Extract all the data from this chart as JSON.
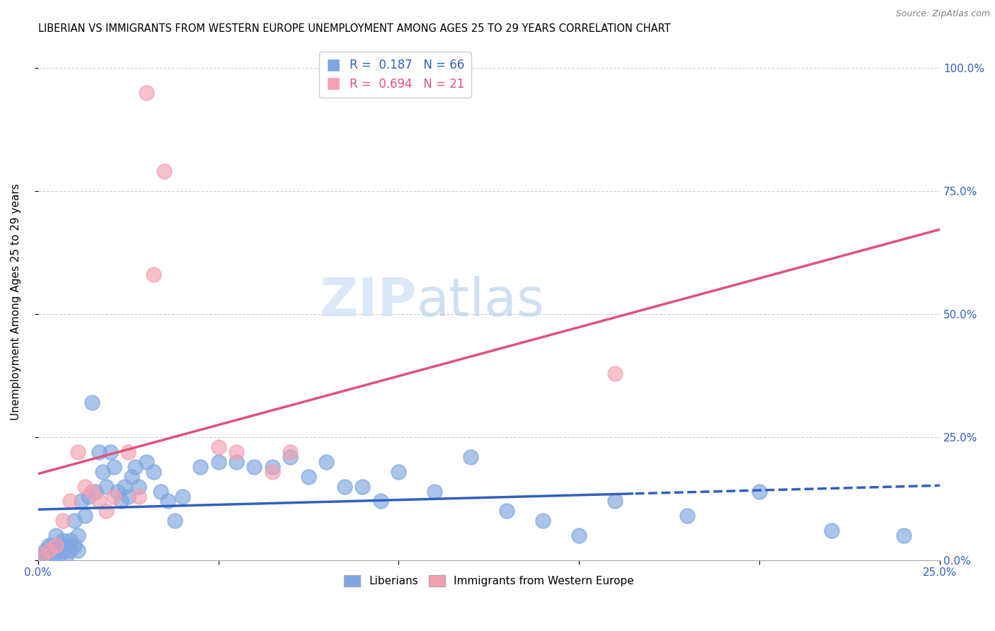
{
  "title": "LIBERIAN VS IMMIGRANTS FROM WESTERN EUROPE UNEMPLOYMENT AMONG AGES 25 TO 29 YEARS CORRELATION CHART",
  "source": "Source: ZipAtlas.com",
  "ylabel": "Unemployment Among Ages 25 to 29 years",
  "xmin": 0.0,
  "xmax": 0.25,
  "ymin": 0.0,
  "ymax": 1.05,
  "legend_label1": "Liberians",
  "legend_label2": "Immigrants from Western Europe",
  "r1": 0.187,
  "n1": 66,
  "r2": 0.694,
  "n2": 21,
  "blue_color": "#7ea6e0",
  "pink_color": "#f4a0b0",
  "blue_line_color": "#3060c0",
  "pink_line_color": "#e05080",
  "watermark_zip": "ZIP",
  "watermark_atlas": "atlas",
  "blue_scatter_x": [
    0.001,
    0.002,
    0.002,
    0.003,
    0.003,
    0.004,
    0.004,
    0.005,
    0.005,
    0.006,
    0.006,
    0.007,
    0.007,
    0.008,
    0.008,
    0.009,
    0.009,
    0.01,
    0.01,
    0.011,
    0.011,
    0.012,
    0.013,
    0.014,
    0.015,
    0.016,
    0.017,
    0.018,
    0.019,
    0.02,
    0.021,
    0.022,
    0.023,
    0.024,
    0.025,
    0.026,
    0.027,
    0.028,
    0.03,
    0.032,
    0.034,
    0.036,
    0.038,
    0.04,
    0.045,
    0.05,
    0.055,
    0.06,
    0.065,
    0.07,
    0.075,
    0.08,
    0.085,
    0.09,
    0.095,
    0.1,
    0.11,
    0.12,
    0.13,
    0.14,
    0.15,
    0.16,
    0.18,
    0.2,
    0.22,
    0.24
  ],
  "blue_scatter_y": [
    0.01,
    0.02,
    0.01,
    0.03,
    0.02,
    0.01,
    0.03,
    0.05,
    0.02,
    0.03,
    0.01,
    0.04,
    0.02,
    0.03,
    0.01,
    0.04,
    0.02,
    0.08,
    0.03,
    0.05,
    0.02,
    0.12,
    0.09,
    0.13,
    0.32,
    0.14,
    0.22,
    0.18,
    0.15,
    0.22,
    0.19,
    0.14,
    0.12,
    0.15,
    0.13,
    0.17,
    0.19,
    0.15,
    0.2,
    0.18,
    0.14,
    0.12,
    0.08,
    0.13,
    0.19,
    0.2,
    0.2,
    0.19,
    0.19,
    0.21,
    0.17,
    0.2,
    0.15,
    0.15,
    0.12,
    0.18,
    0.14,
    0.21,
    0.1,
    0.08,
    0.05,
    0.12,
    0.09,
    0.14,
    0.06,
    0.05
  ],
  "pink_scatter_x": [
    0.001,
    0.003,
    0.005,
    0.007,
    0.009,
    0.011,
    0.013,
    0.015,
    0.017,
    0.019,
    0.021,
    0.025,
    0.028,
    0.03,
    0.032,
    0.05,
    0.055,
    0.065,
    0.07,
    0.16,
    0.035
  ],
  "pink_scatter_y": [
    0.01,
    0.02,
    0.03,
    0.08,
    0.12,
    0.22,
    0.15,
    0.14,
    0.12,
    0.1,
    0.13,
    0.22,
    0.13,
    0.95,
    0.58,
    0.23,
    0.22,
    0.18,
    0.22,
    0.38,
    0.79
  ]
}
